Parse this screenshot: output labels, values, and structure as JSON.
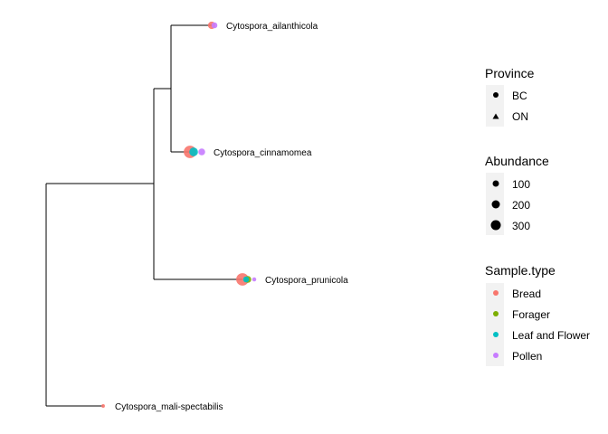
{
  "chart_data": {
    "type": "phylogenetic-tree",
    "tips": [
      {
        "label": "Cytospora_ailanthicola",
        "points": [
          {
            "sample_type": "Bread",
            "province": "BC",
            "abundance": 80
          },
          {
            "sample_type": "Pollen",
            "province": "BC",
            "abundance": 40
          }
        ]
      },
      {
        "label": "Cytospora_cinnamomea",
        "points": [
          {
            "sample_type": "Bread",
            "province": "BC",
            "abundance": 300
          },
          {
            "sample_type": "Leaf and Flower",
            "province": "BC",
            "abundance": 120
          },
          {
            "sample_type": "Pollen",
            "province": "BC",
            "abundance": 60
          }
        ]
      },
      {
        "label": "Cytospora_prunicola",
        "points": [
          {
            "sample_type": "Bread",
            "province": "BC",
            "abundance": 300
          },
          {
            "sample_type": "Forager",
            "province": "BC",
            "abundance": 60
          },
          {
            "sample_type": "Leaf and Flower",
            "province": "BC",
            "abundance": 40
          },
          {
            "sample_type": "Pollen",
            "province": "BC",
            "abundance": 10
          }
        ]
      },
      {
        "label": "Cytospora_mali-spectabilis",
        "points": [
          {
            "sample_type": "Bread",
            "province": "BC",
            "abundance": 5
          }
        ]
      }
    ],
    "legends": {
      "province": {
        "title": "Province",
        "items": [
          "BC",
          "ON"
        ]
      },
      "abundance": {
        "title": "Abundance",
        "items": [
          "100",
          "200",
          "300"
        ]
      },
      "sample_type": {
        "title": "Sample.type",
        "items": [
          "Bread",
          "Forager",
          "Leaf and Flower",
          "Pollen"
        ]
      }
    },
    "colors": {
      "Bread": "#F8766D",
      "Forager": "#7CAE00",
      "Leaf and Flower": "#00BFC4",
      "Pollen": "#C77CFF",
      "line": "#000000"
    }
  }
}
